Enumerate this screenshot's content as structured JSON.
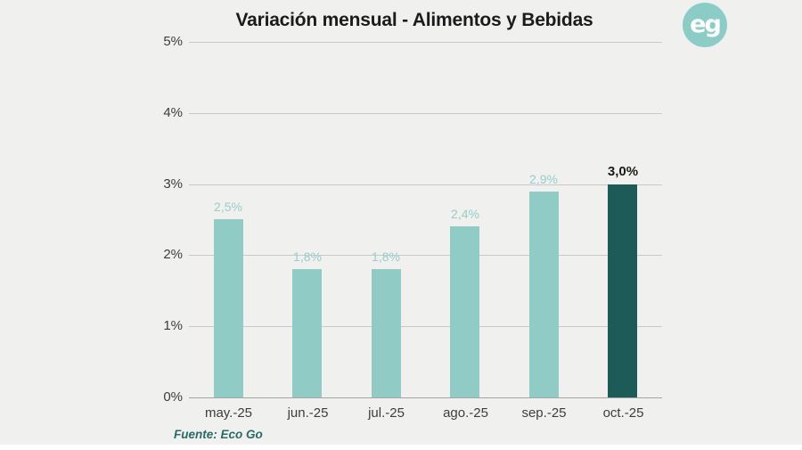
{
  "logo": {
    "text": "eg"
  },
  "source": {
    "label": "Fuente: Eco Go"
  },
  "chart_data": {
    "type": "bar",
    "title": "Variación mensual - Alimentos y Bebidas",
    "categories": [
      "may.-25",
      "jun.-25",
      "jul.-25",
      "ago.-25",
      "sep.-25",
      "oct.-25"
    ],
    "values": [
      2.5,
      1.8,
      1.8,
      2.4,
      2.9,
      3.0
    ],
    "value_labels": [
      "2,5%",
      "1,8%",
      "1,8%",
      "2,4%",
      "2,9%",
      "3,0%"
    ],
    "xlabel": "",
    "ylabel": "",
    "ylim": [
      0,
      5
    ],
    "ytick_step": 1,
    "ytick_labels": [
      "0%",
      "1%",
      "2%",
      "3%",
      "4%",
      "5%"
    ],
    "grid": true,
    "legend": false,
    "highlight_index": 5,
    "colors": {
      "bar": "#90cbc6",
      "bar_highlight": "#1d5b58",
      "value_label": "#96cec9",
      "value_label_highlight": "#1a1a1a",
      "gridline": "#c9c9c9",
      "baseline": "#a5a5a5",
      "axis_text": "#3d3d3d",
      "background": "#f0f0ef",
      "logo_circle": "#8cccc6",
      "source_text": "#2a6b66"
    }
  }
}
